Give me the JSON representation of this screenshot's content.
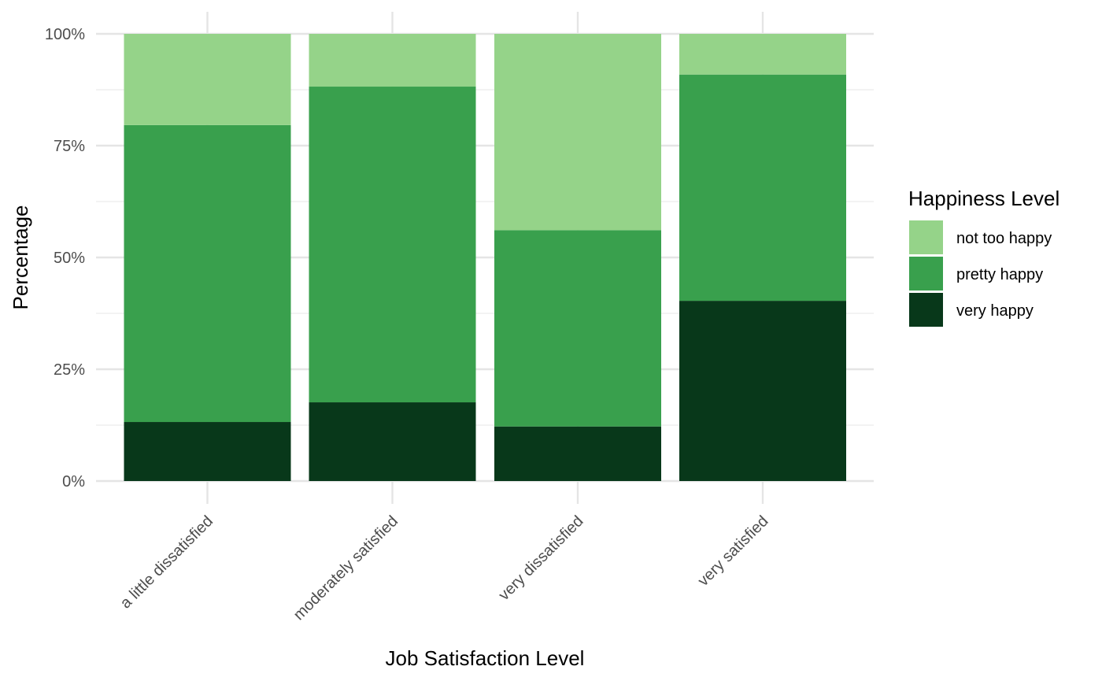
{
  "chart_data": {
    "type": "bar",
    "stacked": true,
    "normalized": true,
    "categories": [
      "a little dissatisfied",
      "moderately satisfied",
      "very dissatisfied",
      "very satisfied"
    ],
    "series": [
      {
        "name": "very happy",
        "color": "#08381a",
        "values": [
          13.2,
          17.6,
          12.2,
          40.3
        ]
      },
      {
        "name": "pretty happy",
        "color": "#39a04d",
        "values": [
          66.4,
          70.6,
          43.9,
          50.6
        ]
      },
      {
        "name": "not too happy",
        "color": "#95d389",
        "values": [
          20.4,
          11.8,
          43.9,
          9.1
        ]
      }
    ],
    "xlabel": "Job Satisfaction Level",
    "ylabel": "Percentage",
    "ylim": [
      0,
      100
    ],
    "yticks": [
      "0%",
      "25%",
      "50%",
      "75%",
      "100%"
    ],
    "grid": true,
    "legend": {
      "title": "Happiness Level",
      "position": "right",
      "entries": [
        {
          "label": "not too happy",
          "color": "#95d389"
        },
        {
          "label": "pretty happy",
          "color": "#39a04d"
        },
        {
          "label": "very happy",
          "color": "#08381a"
        }
      ]
    }
  }
}
